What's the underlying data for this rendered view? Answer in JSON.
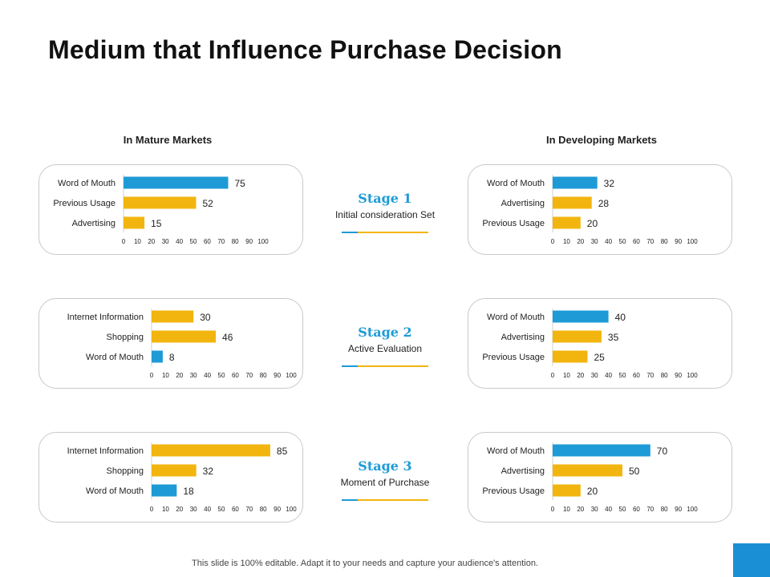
{
  "title": "Medium that Influence Purchase Decision",
  "headers": {
    "mature": "In Mature Markets",
    "developing": "In Developing Markets"
  },
  "colors": {
    "blue": "#1E9BD7",
    "yellow": "#F2B50F"
  },
  "stages": [
    {
      "title": "Stage 1",
      "subtitle": "Initial consideration Set"
    },
    {
      "title": "Stage 2",
      "subtitle": "Active Evaluation"
    },
    {
      "title": "Stage 3",
      "subtitle": "Moment of Purchase"
    }
  ],
  "footer": "This slide is 100% editable. Adapt it to your needs and capture your audience's attention.",
  "chart_data": [
    {
      "type": "bar",
      "orientation": "horizontal",
      "market": "mature",
      "stage": 1,
      "categories": [
        "Word of Mouth",
        "Previous Usage",
        "Advertising"
      ],
      "values": [
        75,
        52,
        15
      ],
      "colors": [
        "blue",
        "yellow",
        "yellow"
      ],
      "xlim": [
        0,
        100
      ],
      "ticks": [
        0,
        10,
        20,
        30,
        40,
        50,
        60,
        70,
        80,
        90,
        100
      ]
    },
    {
      "type": "bar",
      "orientation": "horizontal",
      "market": "developing",
      "stage": 1,
      "categories": [
        "Word of Mouth",
        "Advertising",
        "Previous Usage"
      ],
      "values": [
        32,
        28,
        20
      ],
      "colors": [
        "blue",
        "yellow",
        "yellow"
      ],
      "xlim": [
        0,
        100
      ],
      "ticks": [
        0,
        10,
        20,
        30,
        40,
        50,
        60,
        70,
        80,
        90,
        100
      ]
    },
    {
      "type": "bar",
      "orientation": "horizontal",
      "market": "mature",
      "stage": 2,
      "categories": [
        "Internet Information",
        "Shopping",
        "Word of Mouth"
      ],
      "values": [
        30,
        46,
        8
      ],
      "colors": [
        "yellow",
        "yellow",
        "blue"
      ],
      "xlim": [
        0,
        100
      ],
      "ticks": [
        0,
        10,
        20,
        30,
        40,
        50,
        60,
        70,
        80,
        90,
        100
      ]
    },
    {
      "type": "bar",
      "orientation": "horizontal",
      "market": "developing",
      "stage": 2,
      "categories": [
        "Word of Mouth",
        "Advertising",
        "Previous Usage"
      ],
      "values": [
        40,
        35,
        25
      ],
      "colors": [
        "blue",
        "yellow",
        "yellow"
      ],
      "xlim": [
        0,
        100
      ],
      "ticks": [
        0,
        10,
        20,
        30,
        40,
        50,
        60,
        70,
        80,
        90,
        100
      ]
    },
    {
      "type": "bar",
      "orientation": "horizontal",
      "market": "mature",
      "stage": 3,
      "categories": [
        "Internet Information",
        "Shopping",
        "Word of Mouth"
      ],
      "values": [
        85,
        32,
        18
      ],
      "colors": [
        "yellow",
        "yellow",
        "blue"
      ],
      "xlim": [
        0,
        100
      ],
      "ticks": [
        0,
        10,
        20,
        30,
        40,
        50,
        60,
        70,
        80,
        90,
        100
      ]
    },
    {
      "type": "bar",
      "orientation": "horizontal",
      "market": "developing",
      "stage": 3,
      "categories": [
        "Word of Mouth",
        "Advertising",
        "Previous Usage"
      ],
      "values": [
        70,
        50,
        20
      ],
      "colors": [
        "blue",
        "yellow",
        "yellow"
      ],
      "xlim": [
        0,
        100
      ],
      "ticks": [
        0,
        10,
        20,
        30,
        40,
        50,
        60,
        70,
        80,
        90,
        100
      ]
    }
  ]
}
